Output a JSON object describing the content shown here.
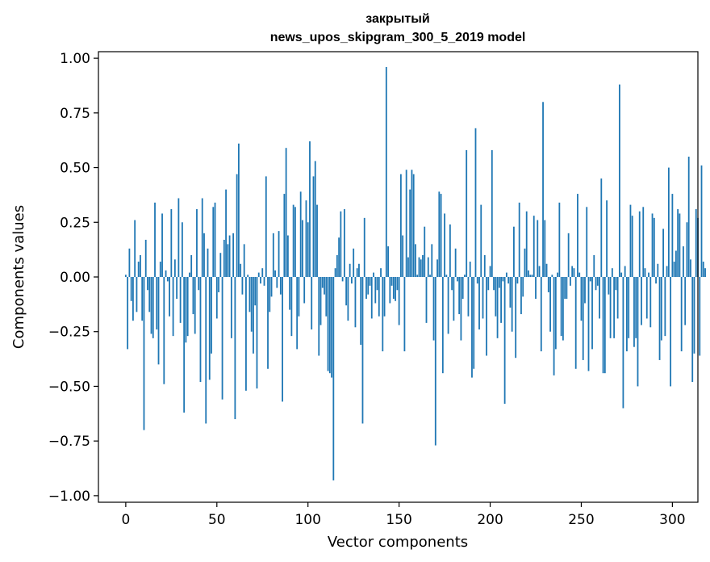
{
  "chart_data": {
    "type": "bar",
    "title_line1": "закрытый",
    "title_line2": "news_upos_skipgram_300_5_2019 model",
    "xlabel": "Vector components",
    "ylabel": "Components values",
    "xlim": [
      -15,
      314
    ],
    "ylim": [
      -1.03,
      1.03
    ],
    "xticks": [
      0,
      50,
      100,
      150,
      200,
      250,
      300
    ],
    "xtick_labels": [
      "0",
      "50",
      "100",
      "150",
      "200",
      "250",
      "300"
    ],
    "yticks": [
      -1.0,
      -0.75,
      -0.5,
      -0.25,
      0.0,
      0.25,
      0.5,
      0.75,
      1.0
    ],
    "ytick_labels": [
      "−1.00",
      "−0.75",
      "−0.50",
      "−0.25",
      "0.00",
      "0.25",
      "0.50",
      "0.75",
      "1.00"
    ],
    "bar_color": "#1f77b4",
    "grid": false,
    "values": [
      0.01,
      -0.33,
      0.13,
      -0.11,
      -0.2,
      0.26,
      -0.16,
      0.07,
      0.1,
      -0.2,
      -0.7,
      0.17,
      -0.06,
      -0.16,
      -0.26,
      -0.28,
      0.34,
      -0.24,
      -0.4,
      0.07,
      0.29,
      -0.49,
      0.03,
      -0.02,
      -0.18,
      0.31,
      -0.27,
      0.08,
      -0.1,
      0.36,
      -0.21,
      0.25,
      -0.62,
      -0.3,
      -0.27,
      0.02,
      0.1,
      -0.17,
      -0.26,
      0.31,
      -0.06,
      -0.48,
      0.36,
      0.2,
      -0.67,
      0.13,
      -0.47,
      -0.35,
      0.32,
      0.34,
      -0.19,
      -0.07,
      0.11,
      -0.56,
      0.17,
      0.4,
      0.15,
      0.19,
      -0.28,
      0.2,
      -0.65,
      0.47,
      0.61,
      0.06,
      -0.08,
      0.15,
      -0.52,
      0.01,
      -0.16,
      -0.25,
      -0.35,
      -0.13,
      -0.51,
      0.02,
      -0.03,
      0.04,
      -0.04,
      0.46,
      -0.42,
      -0.16,
      -0.09,
      0.2,
      0.03,
      -0.05,
      0.21,
      -0.08,
      -0.57,
      0.38,
      0.59,
      0.19,
      -0.15,
      -0.27,
      0.33,
      0.32,
      -0.33,
      -0.18,
      0.39,
      0.26,
      -0.12,
      0.35,
      0.25,
      0.62,
      -0.24,
      0.46,
      0.53,
      0.33,
      -0.36,
      -0.22,
      -0.05,
      -0.08,
      -0.18,
      -0.43,
      -0.44,
      -0.46,
      -0.93,
      0.04,
      0.1,
      0.18,
      0.3,
      -0.02,
      0.31,
      -0.13,
      -0.2,
      0.06,
      -0.03,
      0.13,
      -0.23,
      0.04,
      0.06,
      -0.31,
      -0.67,
      0.27,
      -0.1,
      -0.08,
      -0.04,
      -0.19,
      0.02,
      -0.12,
      -0.06,
      -0.18,
      0.04,
      -0.34,
      -0.18,
      0.96,
      0.14,
      -0.12,
      -0.04,
      -0.1,
      -0.11,
      -0.06,
      -0.22,
      0.47,
      0.19,
      -0.34,
      0.49,
      0.09,
      0.4,
      0.49,
      0.47,
      0.15,
      0.01,
      0.09,
      0.08,
      0.1,
      0.23,
      -0.21,
      0.09,
      0.01,
      0.15,
      -0.29,
      -0.77,
      0.08,
      0.39,
      0.38,
      -0.44,
      0.29,
      0.01,
      -0.26,
      0.24,
      -0.06,
      -0.2,
      0.13,
      -0.02,
      -0.17,
      -0.29,
      -0.1,
      0.01,
      0.58,
      -0.18,
      0.07,
      -0.46,
      -0.42,
      0.68,
      -0.03,
      -0.24,
      0.33,
      -0.19,
      0.1,
      -0.36,
      -0.06,
      0.05,
      0.58,
      -0.06,
      -0.18,
      -0.28,
      -0.05,
      -0.21,
      -0.02,
      -0.58,
      0.02,
      -0.03,
      -0.14,
      -0.25,
      0.23,
      -0.37,
      -0.03,
      0.34,
      -0.17,
      -0.09,
      0.13,
      0.3,
      0.03,
      0.01,
      0.01,
      0.28,
      -0.1,
      0.26,
      0.05,
      -0.34,
      0.8,
      0.26,
      0.06,
      -0.07,
      -0.25,
      0.01,
      -0.45,
      -0.33,
      0.02,
      0.34,
      -0.27,
      -0.29,
      -0.1,
      -0.1,
      0.2,
      -0.04,
      0.05,
      0.04,
      -0.42,
      0.38,
      0.02,
      -0.2,
      -0.38,
      -0.12,
      0.32,
      -0.43,
      -0.02,
      -0.33,
      0.1,
      -0.06,
      -0.04,
      -0.19,
      0.45,
      -0.44,
      -0.44,
      0.35,
      -0.08,
      -0.28,
      0.04,
      -0.28,
      -0.06,
      -0.19,
      0.88,
      0.02,
      -0.6,
      0.05,
      -0.34,
      -0.28,
      0.33,
      0.28,
      -0.32,
      -0.28,
      -0.5,
      0.3,
      -0.22,
      0.32,
      0.04,
      -0.19,
      0.02,
      -0.23,
      0.29,
      0.27,
      -0.03,
      0.06,
      -0.38,
      -0.29,
      0.22,
      -0.27,
      0.05,
      0.5,
      -0.5,
      0.38,
      0.07,
      0.12,
      0.31,
      0.29,
      -0.34,
      0.14,
      -0.22,
      0.25,
      0.55,
      0.08,
      -0.48,
      -0.35,
      0.31,
      0.27,
      -0.36,
      0.51,
      0.07,
      0.04
    ]
  }
}
